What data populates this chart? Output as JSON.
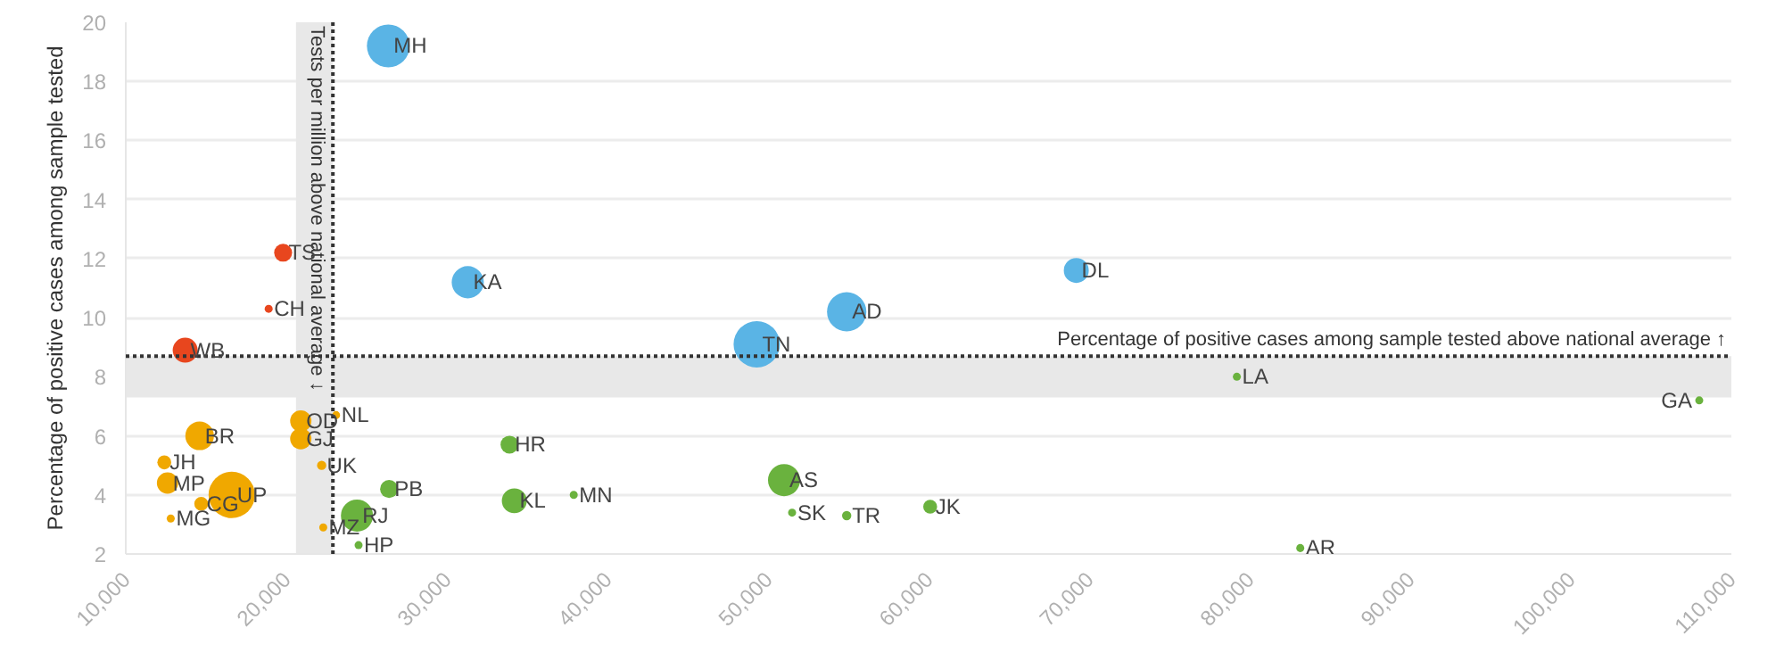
{
  "chart_data": {
    "type": "bubble",
    "ylabel": "Percentage of positive cases among sample tested",
    "xlim": [
      10000,
      110000
    ],
    "xticks": [
      {
        "value": 10000,
        "label": "10,000"
      },
      {
        "value": 20000,
        "label": "20,000"
      },
      {
        "value": 30000,
        "label": "30,000"
      },
      {
        "value": 40000,
        "label": "40,000"
      },
      {
        "value": 50000,
        "label": "50,000"
      },
      {
        "value": 60000,
        "label": "60,000"
      },
      {
        "value": 70000,
        "label": "70,000"
      },
      {
        "value": 80000,
        "label": "80,000"
      },
      {
        "value": 90000,
        "label": "90,000"
      },
      {
        "value": 100000,
        "label": "100,000"
      },
      {
        "value": 110000,
        "label": "110,000"
      }
    ],
    "ylim": [
      2,
      20
    ],
    "yticks": [
      2,
      4,
      6,
      8,
      10,
      12,
      14,
      16,
      18,
      20
    ],
    "grid": "y",
    "marker": "circle",
    "series": [
      {
        "color": "#5ab4e5",
        "x": [
          26350,
          31300,
          49300,
          54900,
          69200
        ],
        "values": [
          19.2,
          11.2,
          9.1,
          10.2,
          11.6
        ],
        "sizes": [
          0.85,
          0.48,
          1,
          0.72,
          0.29
        ]
      },
      {
        "color": "#e8461e",
        "x": [
          19800,
          18900,
          13700
        ],
        "values": [
          12.2,
          10.3,
          8.9
        ],
        "sizes": [
          0.15,
          0.03,
          0.29
        ]
      },
      {
        "color": "#f0a800",
        "x": [
          20900,
          20900,
          23100,
          14600,
          12400,
          12600,
          22200,
          16600,
          14700,
          12800,
          22300
        ],
        "values": [
          6.5,
          5.9,
          6.7,
          6.0,
          5.1,
          4.4,
          5.0,
          4.0,
          3.7,
          3.2,
          2.9
        ],
        "sizes": [
          0.21,
          0.21,
          0.03,
          0.38,
          0.09,
          0.21,
          0.04,
          1,
          0.09,
          0.03,
          0.03
        ]
      },
      {
        "color": "#6ab23e",
        "x": [
          24400,
          24500,
          26400,
          33900,
          34200,
          37900,
          51000,
          51500,
          54900,
          60100,
          79200,
          108000,
          83150
        ],
        "values": [
          3.3,
          2.3,
          4.2,
          5.7,
          3.8,
          4.0,
          4.5,
          3.4,
          3.3,
          3.6,
          8.0,
          7.2,
          2.2
        ],
        "sizes": [
          0.48,
          0.03,
          0.15,
          0.15,
          0.29,
          0.03,
          0.48,
          0.03,
          0.04,
          0.09,
          0.03,
          0.03,
          0.03
        ]
      }
    ],
    "ref_lines": [
      {
        "axis": "x",
        "value": 22900,
        "label": "Tests per million above national average ↓",
        "line_style": "dotted",
        "color": "#333333"
      },
      {
        "axis": "y",
        "value": 8.7,
        "label": "Percentage of positive cases among sample tested above national average ↑",
        "line_style": "dotted",
        "color": "#333333"
      }
    ],
    "bands": [
      {
        "axis": "x",
        "from": 20600,
        "to": 22900,
        "color": "#e8e8e8"
      },
      {
        "axis": "y",
        "from": 7.3,
        "to": 8.7,
        "color": "#e8e8e8"
      }
    ],
    "annotations": [
      {
        "text": "MH",
        "x": 26350,
        "y": 19.2
      },
      {
        "text": "KA",
        "x": 31300,
        "y": 11.2
      },
      {
        "text": "TN",
        "x": 49300,
        "y": 9.1
      },
      {
        "text": "AD",
        "x": 54900,
        "y": 10.2
      },
      {
        "text": "DL",
        "x": 69200,
        "y": 11.6
      },
      {
        "text": "TS",
        "x": 19800,
        "y": 12.2
      },
      {
        "text": "CH",
        "x": 18900,
        "y": 10.3
      },
      {
        "text": "WB",
        "x": 13700,
        "y": 8.9
      },
      {
        "text": "OD",
        "x": 20900,
        "y": 6.5
      },
      {
        "text": "GJ",
        "x": 20900,
        "y": 5.9
      },
      {
        "text": "NL",
        "x": 23100,
        "y": 6.7
      },
      {
        "text": "BR",
        "x": 14600,
        "y": 6.0
      },
      {
        "text": "JH",
        "x": 12400,
        "y": 5.1
      },
      {
        "text": "MP",
        "x": 12600,
        "y": 4.4
      },
      {
        "text": "UK",
        "x": 22200,
        "y": 5.0
      },
      {
        "text": "UP",
        "x": 16600,
        "y": 4.0
      },
      {
        "text": "CG",
        "x": 14700,
        "y": 3.7
      },
      {
        "text": "MG",
        "x": 12800,
        "y": 3.2
      },
      {
        "text": "MZ",
        "x": 22300,
        "y": 2.9
      },
      {
        "text": "RJ",
        "x": 24400,
        "y": 3.3
      },
      {
        "text": "HP",
        "x": 24500,
        "y": 2.3
      },
      {
        "text": "PB",
        "x": 26400,
        "y": 4.2
      },
      {
        "text": "HR",
        "x": 33900,
        "y": 5.7
      },
      {
        "text": "KL",
        "x": 34200,
        "y": 3.8
      },
      {
        "text": "MN",
        "x": 37900,
        "y": 4.0
      },
      {
        "text": "AS",
        "x": 51000,
        "y": 4.5
      },
      {
        "text": "SK",
        "x": 51500,
        "y": 3.4
      },
      {
        "text": "TR",
        "x": 54900,
        "y": 3.3
      },
      {
        "text": "JK",
        "x": 60100,
        "y": 3.6
      },
      {
        "text": "LA",
        "x": 79200,
        "y": 8.0
      },
      {
        "text": "GA",
        "x": 108000,
        "y": 7.2
      },
      {
        "text": "AR",
        "x": 83150,
        "y": 2.2
      }
    ]
  }
}
